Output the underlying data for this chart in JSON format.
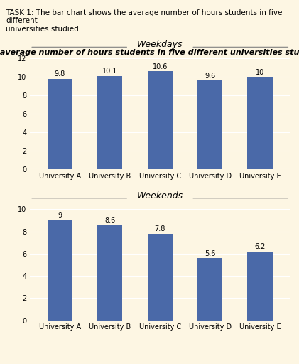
{
  "title": "The average number of hours students in five different universities studied",
  "task_text": "TASK 1: The bar chart shows the average number of hours students in five different\nuniversities studied.",
  "universities": [
    "University A",
    "University B",
    "University C",
    "University D",
    "University E"
  ],
  "weekdays_label": "Weekdays",
  "weekdays_values": [
    9.8,
    10.1,
    10.6,
    9.6,
    10
  ],
  "weekdays_ylim": [
    0,
    12
  ],
  "weekdays_yticks": [
    0,
    2,
    4,
    6,
    8,
    10,
    12
  ],
  "weekends_label": "Weekends",
  "weekends_values": [
    9,
    8.6,
    7.8,
    5.6,
    6.2
  ],
  "weekends_ylim": [
    0,
    10
  ],
  "weekends_yticks": [
    0,
    2,
    4,
    6,
    8,
    10
  ],
  "bar_color": "#4a69a8",
  "bar_width": 0.5,
  "background_color": "#fdf6e3",
  "plot_bg_color": "#fdf6e3",
  "title_fontsize": 8,
  "task_fontsize": 7.5,
  "label_fontsize": 8,
  "tick_fontsize": 7,
  "value_fontsize": 7,
  "section_label_fontsize": 9
}
